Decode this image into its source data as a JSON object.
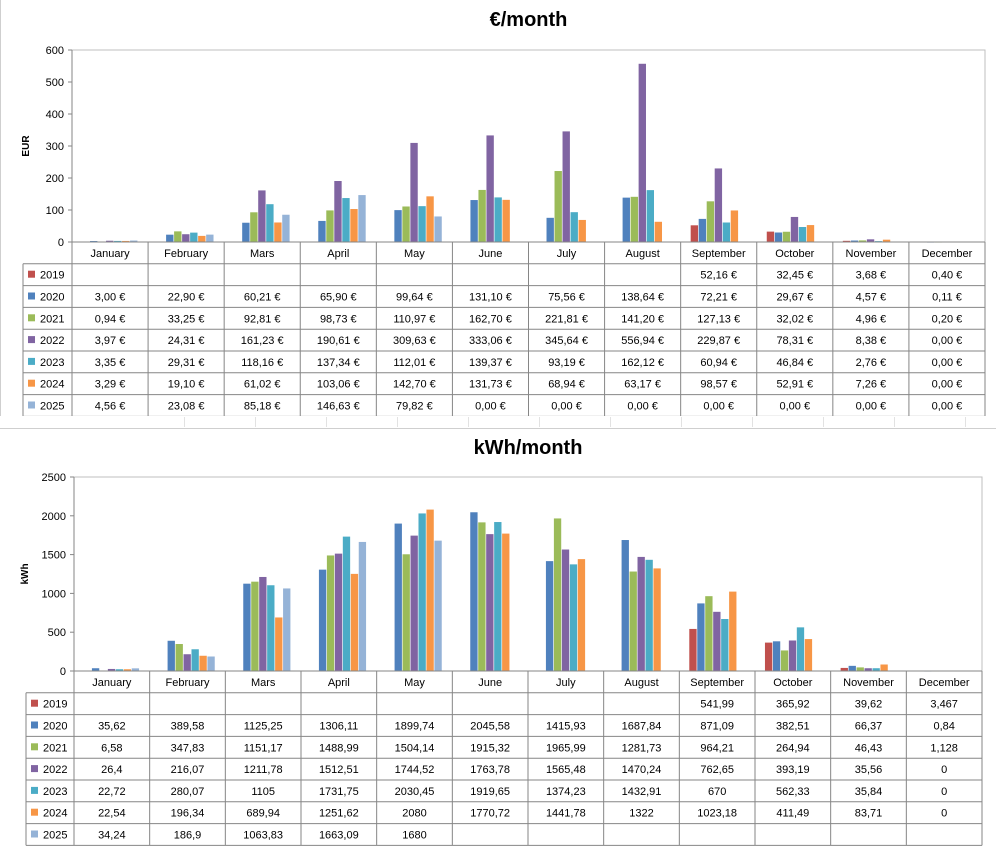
{
  "chart_data": [
    {
      "type": "bar",
      "title": "€/month",
      "ylabel": "EUR",
      "ylim": [
        0,
        600
      ],
      "yticks": [
        0,
        100,
        200,
        300,
        400,
        500,
        600
      ],
      "categories": [
        "January",
        "February",
        "Mars",
        "April",
        "May",
        "June",
        "July",
        "August",
        "September",
        "October",
        "November",
        "December"
      ],
      "series": [
        {
          "name": "2019",
          "color": "#c0504d",
          "values": [
            null,
            null,
            null,
            null,
            null,
            null,
            null,
            null,
            52.16,
            32.45,
            3.68,
            0.4
          ]
        },
        {
          "name": "2020",
          "color": "#4f81bd",
          "values": [
            3.0,
            22.9,
            60.21,
            65.9,
            99.64,
            131.1,
            75.56,
            138.64,
            72.21,
            29.67,
            4.57,
            0.11
          ]
        },
        {
          "name": "2021",
          "color": "#9bbb59",
          "values": [
            0.94,
            33.25,
            92.81,
            98.73,
            110.97,
            162.7,
            221.81,
            141.2,
            127.13,
            32.02,
            4.96,
            0.2
          ]
        },
        {
          "name": "2022",
          "color": "#8064a2",
          "values": [
            3.97,
            24.31,
            161.23,
            190.61,
            309.63,
            333.06,
            345.64,
            556.94,
            229.87,
            78.31,
            8.38,
            0.0
          ]
        },
        {
          "name": "2023",
          "color": "#4bacc6",
          "values": [
            3.35,
            29.31,
            118.16,
            137.34,
            112.01,
            139.37,
            93.19,
            162.12,
            60.94,
            46.84,
            2.76,
            0.0
          ]
        },
        {
          "name": "2024",
          "color": "#f79646",
          "values": [
            3.29,
            19.1,
            61.02,
            103.06,
            142.7,
            131.73,
            68.94,
            63.17,
            98.57,
            52.91,
            7.26,
            0.0
          ]
        },
        {
          "name": "2025",
          "color": "#95b3d7",
          "values": [
            4.56,
            23.08,
            85.18,
            146.63,
            79.82,
            0.0,
            0.0,
            0.0,
            0.0,
            0.0,
            0.0,
            0.0
          ]
        }
      ],
      "table": [
        [
          "",
          "",
          "",
          "",
          "",
          "",
          "",
          "",
          "52,16 €",
          "32,45 €",
          "3,68 €",
          "0,40 €"
        ],
        [
          "3,00 €",
          "22,90 €",
          "60,21 €",
          "65,90 €",
          "99,64 €",
          "131,10 €",
          "75,56 €",
          "138,64 €",
          "72,21 €",
          "29,67 €",
          "4,57 €",
          "0,11 €"
        ],
        [
          "0,94 €",
          "33,25 €",
          "92,81 €",
          "98,73 €",
          "110,97 €",
          "162,70 €",
          "221,81 €",
          "141,20 €",
          "127,13 €",
          "32,02 €",
          "4,96 €",
          "0,20 €"
        ],
        [
          "3,97 €",
          "24,31 €",
          "161,23 €",
          "190,61 €",
          "309,63 €",
          "333,06 €",
          "345,64 €",
          "556,94 €",
          "229,87 €",
          "78,31 €",
          "8,38 €",
          "0,00 €"
        ],
        [
          "3,35 €",
          "29,31 €",
          "118,16 €",
          "137,34 €",
          "112,01 €",
          "139,37 €",
          "93,19 €",
          "162,12 €",
          "60,94 €",
          "46,84 €",
          "2,76 €",
          "0,00 €"
        ],
        [
          "3,29 €",
          "19,10 €",
          "61,02 €",
          "103,06 €",
          "142,70 €",
          "131,73 €",
          "68,94 €",
          "63,17 €",
          "98,57 €",
          "52,91 €",
          "7,26 €",
          "0,00 €"
        ],
        [
          "4,56 €",
          "23,08 €",
          "85,18 €",
          "146,63 €",
          "79,82 €",
          "0,00 €",
          "0,00 €",
          "0,00 €",
          "0,00 €",
          "0,00 €",
          "0,00 €",
          "0,00 €"
        ]
      ]
    },
    {
      "type": "bar",
      "title": "kWh/month",
      "ylabel": "kWh",
      "ylim": [
        0,
        2500
      ],
      "yticks": [
        0,
        500,
        1000,
        1500,
        2000,
        2500
      ],
      "categories": [
        "January",
        "February",
        "Mars",
        "April",
        "May",
        "June",
        "July",
        "August",
        "September",
        "October",
        "November",
        "December"
      ],
      "series": [
        {
          "name": "2019",
          "color": "#c0504d",
          "values": [
            null,
            null,
            null,
            null,
            null,
            null,
            null,
            null,
            541.99,
            365.92,
            39.62,
            3.467
          ]
        },
        {
          "name": "2020",
          "color": "#4f81bd",
          "values": [
            35.62,
            389.58,
            1125.25,
            1306.11,
            1899.74,
            2045.58,
            1415.93,
            1687.84,
            871.09,
            382.51,
            66.37,
            0.84
          ]
        },
        {
          "name": "2021",
          "color": "#9bbb59",
          "values": [
            6.58,
            347.83,
            1151.17,
            1488.99,
            1504.14,
            1915.32,
            1965.99,
            1281.73,
            964.21,
            264.94,
            46.43,
            1.128
          ]
        },
        {
          "name": "2022",
          "color": "#8064a2",
          "values": [
            26.4,
            216.07,
            1211.78,
            1512.51,
            1744.52,
            1763.78,
            1565.48,
            1470.24,
            762.65,
            393.19,
            35.56,
            0
          ]
        },
        {
          "name": "2023",
          "color": "#4bacc6",
          "values": [
            22.72,
            280.07,
            1105,
            1731.75,
            2030.45,
            1919.65,
            1374.23,
            1432.91,
            670,
            562.33,
            35.84,
            0
          ]
        },
        {
          "name": "2024",
          "color": "#f79646",
          "values": [
            22.54,
            196.34,
            689.94,
            1251.62,
            2080,
            1770.72,
            1441.78,
            1322,
            1023.18,
            411.49,
            83.71,
            0
          ]
        },
        {
          "name": "2025",
          "color": "#95b3d7",
          "values": [
            34.24,
            186.9,
            1063.83,
            1663.09,
            1680,
            null,
            null,
            null,
            null,
            null,
            null,
            null
          ]
        }
      ],
      "table": [
        [
          "",
          "",
          "",
          "",
          "",
          "",
          "",
          "",
          "541,99",
          "365,92",
          "39,62",
          "3,467"
        ],
        [
          "35,62",
          "389,58",
          "1125,25",
          "1306,11",
          "1899,74",
          "2045,58",
          "1415,93",
          "1687,84",
          "871,09",
          "382,51",
          "66,37",
          "0,84"
        ],
        [
          "6,58",
          "347,83",
          "1151,17",
          "1488,99",
          "1504,14",
          "1915,32",
          "1965,99",
          "1281,73",
          "964,21",
          "264,94",
          "46,43",
          "1,128"
        ],
        [
          "26,4",
          "216,07",
          "1211,78",
          "1512,51",
          "1744,52",
          "1763,78",
          "1565,48",
          "1470,24",
          "762,65",
          "393,19",
          "35,56",
          "0"
        ],
        [
          "22,72",
          "280,07",
          "1105",
          "1731,75",
          "2030,45",
          "1919,65",
          "1374,23",
          "1432,91",
          "670",
          "562,33",
          "35,84",
          "0"
        ],
        [
          "22,54",
          "196,34",
          "689,94",
          "1251,62",
          "2080",
          "1770,72",
          "1441,78",
          "1322",
          "1023,18",
          "411,49",
          "83,71",
          "0"
        ],
        [
          "34,24",
          "186,9",
          "1063,83",
          "1663,09",
          "1680",
          "",
          "",
          "",
          "",
          "",
          "",
          ""
        ]
      ]
    }
  ]
}
